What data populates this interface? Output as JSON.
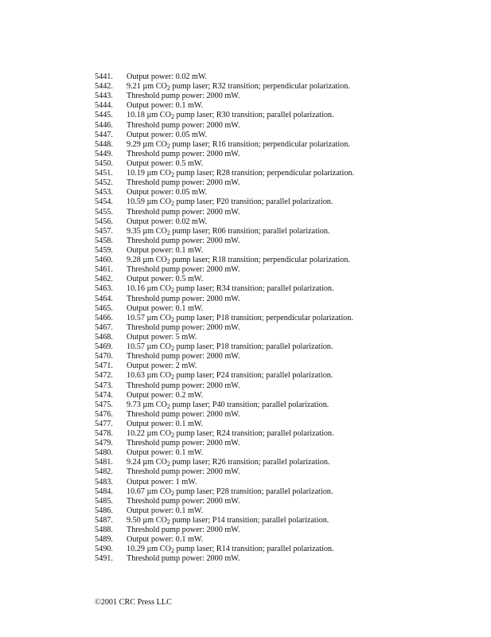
{
  "entries": [
    {
      "num": "5441.",
      "text": "Output power: 0.02 mW."
    },
    {
      "num": "5442.",
      "pre": "9.21 µm CO",
      "sub": "2",
      "post": " pump laser; R32 transition; perpendicular polarization."
    },
    {
      "num": "5443.",
      "text": "Threshold pump power: 2000 mW."
    },
    {
      "num": "5444.",
      "text": "Output power: 0.1 mW."
    },
    {
      "num": "5445.",
      "pre": "10.18 µm CO",
      "sub": "2",
      "post": " pump laser; R30 transition; parallel polarization."
    },
    {
      "num": "5446.",
      "text": "Threshold pump power: 2000 mW."
    },
    {
      "num": "5447.",
      "text": "Output power: 0.05 mW."
    },
    {
      "num": "5448.",
      "pre": "9.29 µm CO",
      "sub": "2",
      "post": " pump laser; R16 transition; perpendicular polarization."
    },
    {
      "num": "5449.",
      "text": "Threshold pump power: 2000 mW."
    },
    {
      "num": "5450.",
      "text": "Output power: 0.5 mW."
    },
    {
      "num": "5451.",
      "pre": "10.19 µm CO",
      "sub": "2",
      "post": " pump laser; R28 transition; perpendicular polarization."
    },
    {
      "num": "5452.",
      "text": "Threshold pump power: 2000 mW."
    },
    {
      "num": "5453.",
      "text": "Output power: 0.05 mW."
    },
    {
      "num": "5454.",
      "pre": "10.59 µm CO",
      "sub": "2",
      "post": " pump laser; P20 transition; parallel polarization."
    },
    {
      "num": "5455.",
      "text": "Threshold pump power: 2000 mW."
    },
    {
      "num": "5456.",
      "text": "Output power: 0.02 mW."
    },
    {
      "num": "5457.",
      "pre": "9.35 µm CO",
      "sub": "2",
      "post": " pump laser; R06 transition; parallel polarization."
    },
    {
      "num": "5458.",
      "text": "Threshold pump power: 2000 mW."
    },
    {
      "num": "5459.",
      "text": "Output power: 0.1 mW."
    },
    {
      "num": "5460.",
      "pre": "9.28 µm CO",
      "sub": "2",
      "post": " pump laser; R18 transition; perpendicular polarization."
    },
    {
      "num": "5461.",
      "text": "Threshold pump power: 2000 mW."
    },
    {
      "num": "5462.",
      "text": "Output power: 0.5 mW."
    },
    {
      "num": "5463.",
      "pre": "10.16 µm CO",
      "sub": "2",
      "post": " pump laser; R34 transition; parallel polarization."
    },
    {
      "num": "5464.",
      "text": "Threshold pump power: 2000 mW."
    },
    {
      "num": "5465.",
      "text": "Output power: 0.1 mW."
    },
    {
      "num": "5466.",
      "pre": "10.57 µm CO",
      "sub": "2",
      "post": " pump laser; P18 transition; perpendicular polarization."
    },
    {
      "num": "5467.",
      "text": "Threshold pump power: 2000 mW."
    },
    {
      "num": "5468.",
      "text": "Output power: 5 mW."
    },
    {
      "num": "5469.",
      "pre": "10.57 µm CO",
      "sub": "2",
      "post": " pump laser; P18 transition; parallel polarization."
    },
    {
      "num": "5470.",
      "text": "Threshold pump power: 2000 mW."
    },
    {
      "num": "5471.",
      "text": "Output power: 2 mW."
    },
    {
      "num": "5472.",
      "pre": "10.63 µm CO",
      "sub": "2",
      "post": " pump laser; P24 transition; parallel polarization."
    },
    {
      "num": "5473.",
      "text": "Threshold pump power: 2000 mW."
    },
    {
      "num": "5474.",
      "text": "Output power: 0.2 mW."
    },
    {
      "num": "5475.",
      "pre": "9.73 µm CO",
      "sub": "2",
      "post": " pump laser; P40 transition; parallel polarization."
    },
    {
      "num": "5476.",
      "text": "Threshold pump power: 2000 mW."
    },
    {
      "num": "5477.",
      "text": "Output power: 0.1 mW."
    },
    {
      "num": "5478.",
      "pre": "10.22 µm CO",
      "sub": "2",
      "post": " pump laser; R24 transition; parallel polarization."
    },
    {
      "num": "5479.",
      "text": "Threshold pump power: 2000 mW."
    },
    {
      "num": "5480.",
      "text": "Output power: 0.1 mW."
    },
    {
      "num": "5481.",
      "pre": "9.24 µm CO",
      "sub": "2",
      "post": " pump laser; R26 transition; parallel polarization."
    },
    {
      "num": "5482.",
      "text": "Threshold pump power: 2000 mW."
    },
    {
      "num": "5483.",
      "text": "Output power: 1 mW."
    },
    {
      "num": "5484.",
      "pre": "10.67 µm CO",
      "sub": "2",
      "post": " pump laser; P28 transition; parallel polarization."
    },
    {
      "num": "5485.",
      "text": "Threshold pump power: 2000 mW."
    },
    {
      "num": "5486.",
      "text": "Output power: 0.1 mW."
    },
    {
      "num": "5487.",
      "pre": "9.50 µm CO",
      "sub": "2",
      "post": " pump laser; P14 transition; parallel polarization."
    },
    {
      "num": "5488.",
      "text": "Threshold pump power: 2000 mW."
    },
    {
      "num": "5489.",
      "text": "Output power: 0.1 mW."
    },
    {
      "num": "5490.",
      "pre": "10.29 µm CO",
      "sub": "2",
      "post": " pump laser; R14 transition; parallel polarization."
    },
    {
      "num": "5491.",
      "text": "Threshold pump power: 2000 mW."
    }
  ],
  "footer": "©2001 CRC Press LLC"
}
